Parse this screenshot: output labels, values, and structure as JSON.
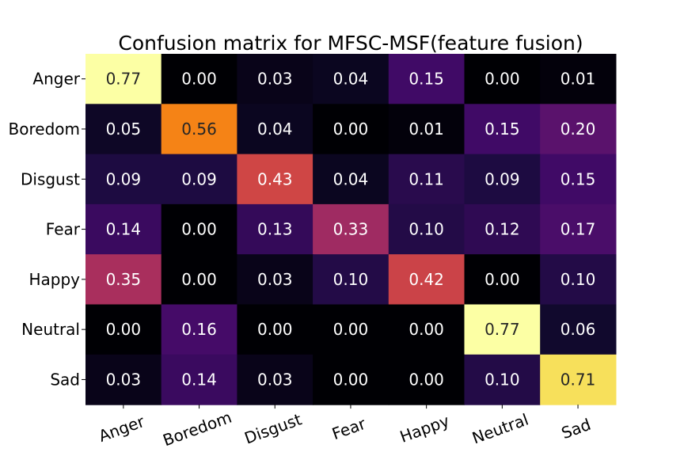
{
  "chart_data": {
    "type": "heatmap",
    "title": "Confusion matrix for MFSC-MSF(feature fusion)",
    "xlabel": "",
    "ylabel": "",
    "row_labels": [
      "Anger",
      "Boredom",
      "Disgust",
      "Fear",
      "Happy",
      "Neutral",
      "Sad"
    ],
    "col_labels": [
      "Anger",
      "Boredom",
      "Disgust",
      "Fear",
      "Happy",
      "Neutral",
      "Sad"
    ],
    "values": [
      [
        0.77,
        0.0,
        0.03,
        0.04,
        0.15,
        0.0,
        0.01
      ],
      [
        0.05,
        0.56,
        0.04,
        0.0,
        0.01,
        0.15,
        0.2
      ],
      [
        0.09,
        0.09,
        0.43,
        0.04,
        0.11,
        0.09,
        0.15
      ],
      [
        0.14,
        0.0,
        0.13,
        0.33,
        0.1,
        0.12,
        0.17
      ],
      [
        0.35,
        0.0,
        0.03,
        0.1,
        0.42,
        0.0,
        0.1
      ],
      [
        0.0,
        0.16,
        0.0,
        0.0,
        0.0,
        0.77,
        0.06
      ],
      [
        0.03,
        0.14,
        0.03,
        0.0,
        0.0,
        0.1,
        0.71
      ]
    ],
    "colormap": "inferno",
    "vmin": 0.0,
    "vmax": 0.77,
    "value_format": "0.00"
  }
}
